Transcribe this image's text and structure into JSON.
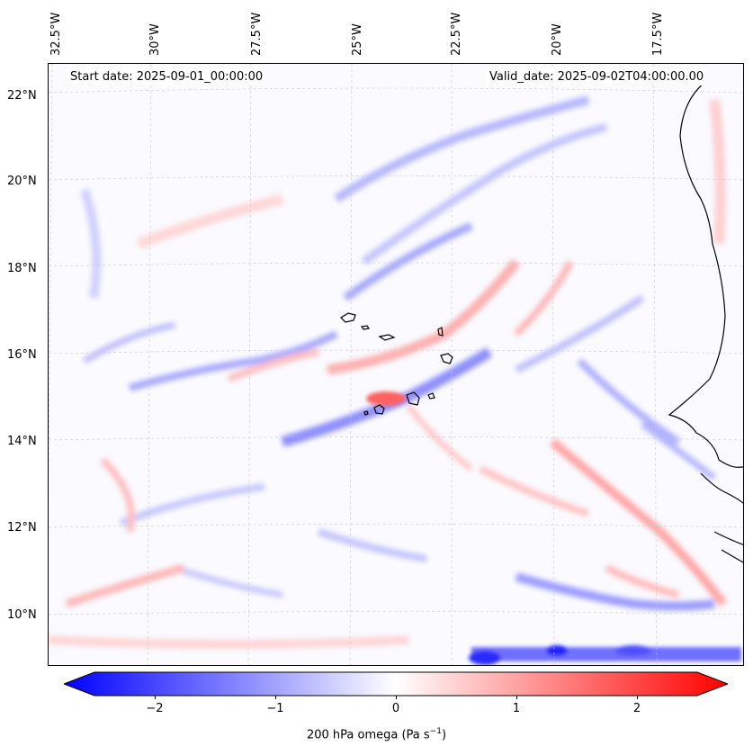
{
  "map": {
    "lon_labels": [
      "32.5°W",
      "30°W",
      "27.5°W",
      "25°W",
      "22.5°W",
      "20°W",
      "17.5°W"
    ],
    "lat_labels": [
      "22°N",
      "20°N",
      "18°N",
      "16°N",
      "14°N",
      "12°N",
      "10°N"
    ],
    "start_date": "Start date: 2025-09-01_00:00:00",
    "valid_date": "Valid_date: 2025-09-02T04:00:00.00",
    "field_colors": {
      "negative": "#0000ff",
      "zero": "#ffffff",
      "positive": "#ff0000"
    }
  },
  "colorbar": {
    "ticks": [
      "−2",
      "−1",
      "0",
      "1",
      "2"
    ],
    "tick_values": [
      -2,
      -1,
      0,
      1,
      2
    ],
    "range": [
      -2.6,
      2.6
    ],
    "label_main": "200 hPa omega (Pa s",
    "label_sup": "−1",
    "label_end": ")"
  }
}
